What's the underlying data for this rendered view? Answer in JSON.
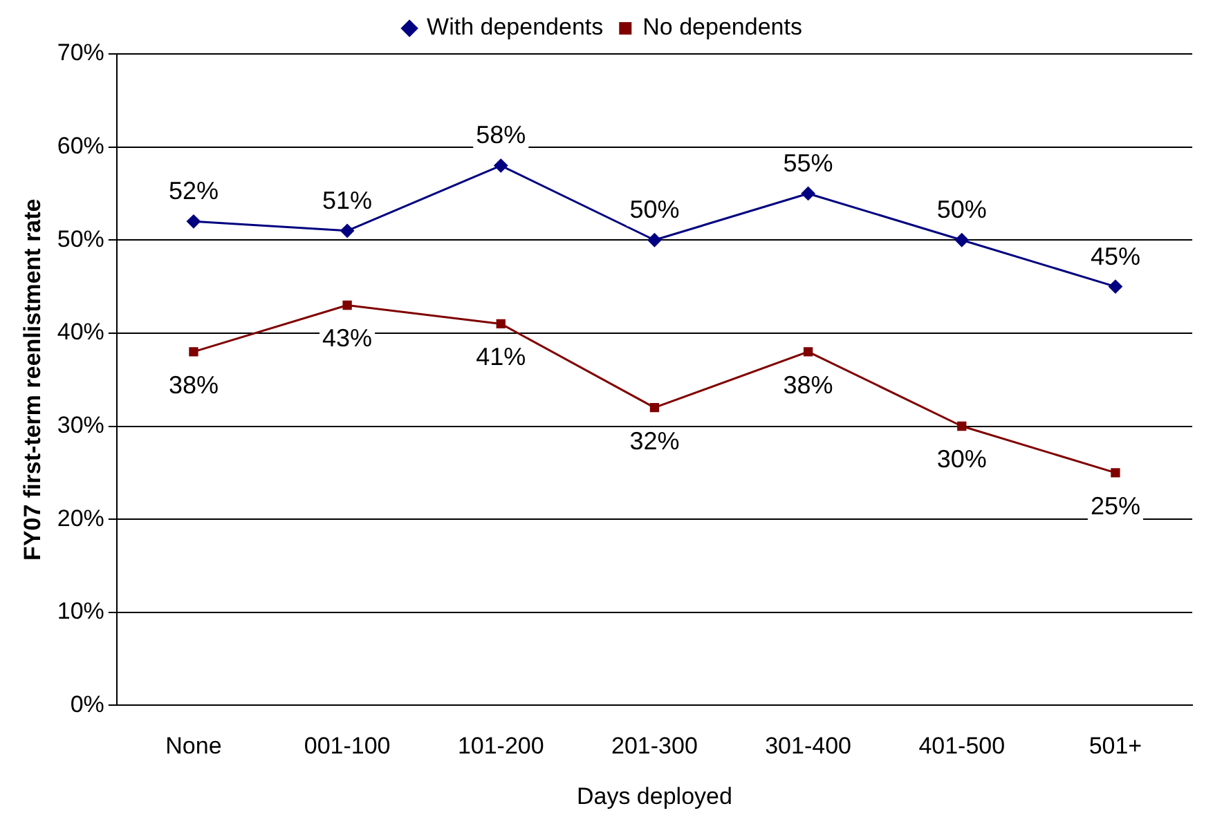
{
  "chart_data": {
    "type": "line",
    "xlabel": "Days deployed",
    "ylabel": "FY07 first-term reenlistment rate",
    "categories": [
      "None",
      "001-100",
      "101-200",
      "201-300",
      "301-400",
      "401-500",
      "501+"
    ],
    "series": [
      {
        "name": "With dependents",
        "color": "#000080",
        "marker": "diamond",
        "values": [
          52,
          51,
          58,
          50,
          55,
          50,
          45
        ],
        "value_labels": [
          "52%",
          "51%",
          "58%",
          "50%",
          "55%",
          "50%",
          "45%"
        ]
      },
      {
        "name": "No dependents",
        "color": "#800000",
        "marker": "square",
        "values": [
          38,
          43,
          41,
          32,
          38,
          30,
          25
        ],
        "value_labels": [
          "38%",
          "43%",
          "41%",
          "32%",
          "38%",
          "30%",
          "25%"
        ]
      }
    ],
    "ylim": [
      0,
      70
    ],
    "yticks": [
      {
        "value": 0,
        "label": "0%"
      },
      {
        "value": 10,
        "label": "10%"
      },
      {
        "value": 20,
        "label": "20%"
      },
      {
        "value": 30,
        "label": "30%"
      },
      {
        "value": 40,
        "label": "40%"
      },
      {
        "value": 50,
        "label": "50%"
      },
      {
        "value": 60,
        "label": "60%"
      },
      {
        "value": 70,
        "label": "70%"
      }
    ],
    "grid": "y",
    "legend": "top",
    "line_style": "solid"
  }
}
